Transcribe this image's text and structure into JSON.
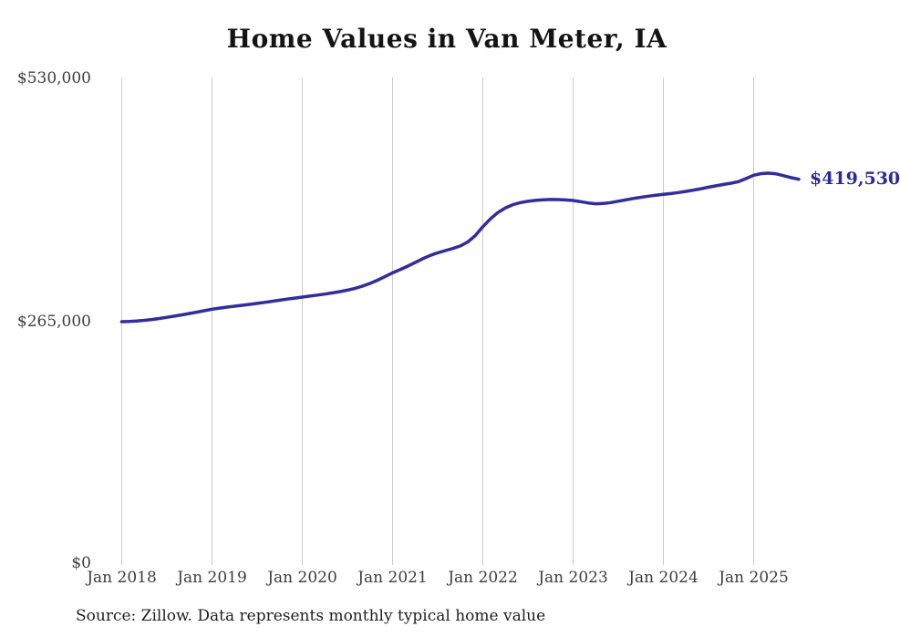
{
  "header": {
    "title": "Home Values in Van Meter, IA"
  },
  "footer": {
    "source_note": "Source: Zillow. Data represents monthly typical home value"
  },
  "colors": {
    "line": "#312d9b",
    "end_label": "#2b2a9a",
    "grid": "#cccccc",
    "axis_text": "#3d3d3d",
    "title_text": "#141414",
    "background": "#ffffff"
  },
  "chart_data": {
    "type": "line",
    "title": "Home Values in Van Meter, IA",
    "xlabel": "",
    "ylabel": "",
    "legend": "none",
    "grid": "vertical gridlines at each January",
    "ylim": [
      0,
      530000
    ],
    "y_ticks": [
      {
        "value": 530000,
        "label": "$530,000"
      },
      {
        "value": 265000,
        "label": "$265,000"
      },
      {
        "value": 0,
        "label": "$0"
      }
    ],
    "x_tick_labels": [
      "Jan 2018",
      "Jan 2019",
      "Jan 2020",
      "Jan 2021",
      "Jan 2022",
      "Jan 2023",
      "Jan 2024",
      "Jan 2025"
    ],
    "x_start": "2018-01",
    "x_end": "2025-07",
    "frequency": "monthly",
    "end_label": "$419,530",
    "final_value": 419530,
    "series": [
      {
        "name": "Typical home value ($)",
        "values": [
          265000,
          265300,
          265800,
          266500,
          267400,
          268500,
          269700,
          271000,
          272400,
          273900,
          275400,
          277000,
          278500,
          279700,
          280800,
          281800,
          282800,
          283800,
          284900,
          286000,
          287100,
          288300,
          289500,
          290600,
          291700,
          292800,
          293900,
          295000,
          296200,
          297600,
          299200,
          301200,
          303600,
          306500,
          310000,
          314000,
          318000,
          321500,
          325200,
          329200,
          333300,
          336900,
          339800,
          342100,
          344400,
          347200,
          351500,
          358500,
          368000,
          376500,
          383500,
          388500,
          392000,
          394200,
          395600,
          396600,
          397300,
          397600,
          397500,
          397100,
          396500,
          395200,
          393800,
          393000,
          393200,
          394200,
          395700,
          397200,
          398700,
          400000,
          401200,
          402200,
          403100,
          404000,
          405100,
          406400,
          407800,
          409300,
          410900,
          412400,
          413900,
          415300,
          417000,
          420300,
          423900,
          425700,
          426200,
          425400,
          423400,
          421200,
          419530
        ]
      }
    ]
  }
}
